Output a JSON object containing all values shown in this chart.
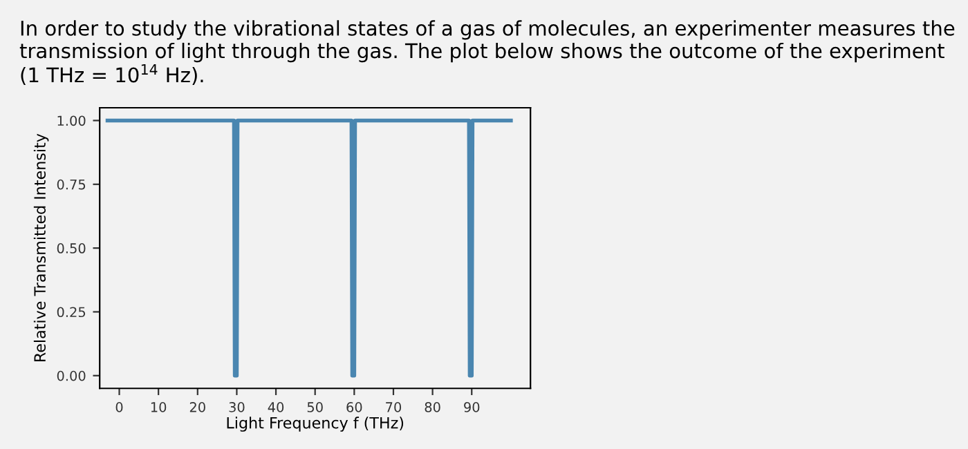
{
  "chart_data": {
    "type": "line",
    "title": "In order to study the vibrational states of a gas of molecules, an experimenter measures the transmission of light through the gas. The plot below shows the outcome of the experiment (1 THz = 10$^{14}$ Hz).",
    "xlabel": "Light Frequency f (THz)",
    "ylabel": "Relative Transmitted Intensity",
    "x": [
      -3,
      29.3,
      29.5,
      30.0,
      30.2,
      59.3,
      59.5,
      60.0,
      60.2,
      89.3,
      89.5,
      90.0,
      90.2,
      100
    ],
    "series": [
      {
        "color": "#4a86b0",
        "values": [
          1,
          1,
          0,
          0,
          1,
          1,
          0,
          0,
          1,
          1,
          0,
          0,
          1,
          1
        ]
      }
    ],
    "xlim": [
      -5,
      105
    ],
    "ylim": [
      -0.05,
      1.05
    ],
    "xticks": [
      0,
      10,
      20,
      30,
      40,
      50,
      60,
      70,
      80,
      90
    ],
    "yticks": [
      {
        "value": 0,
        "label": "0.00"
      },
      {
        "value": 0.25,
        "label": "0.25"
      },
      {
        "value": 0.5,
        "label": "0.50"
      },
      {
        "value": 0.75,
        "label": "0.75"
      },
      {
        "value": 1,
        "label": "1.00"
      }
    ],
    "grid": false,
    "legend": false,
    "line_style": "solid",
    "marker": "none"
  }
}
